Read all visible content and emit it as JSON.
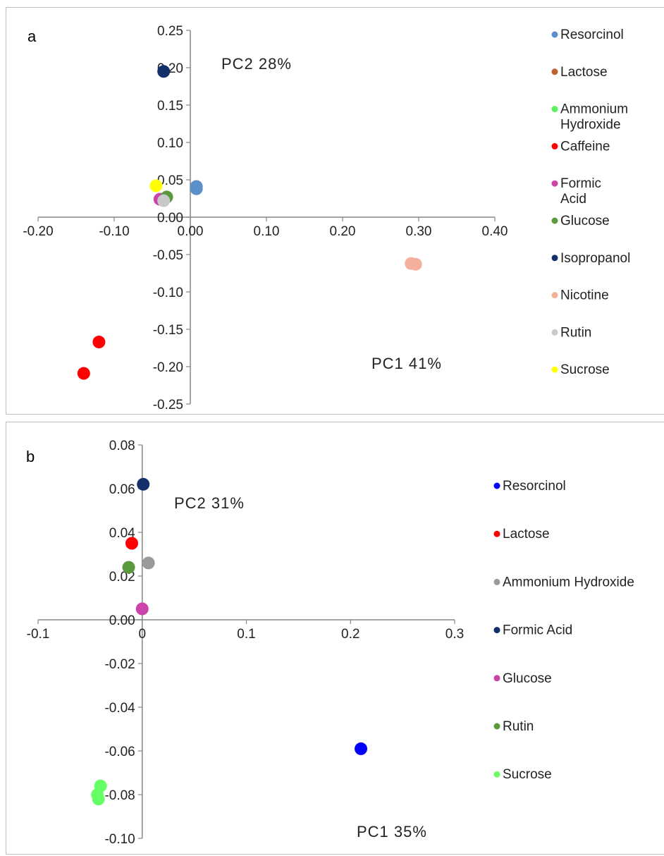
{
  "chart_data": [
    {
      "type": "scatter",
      "panel_label": "a",
      "xlim": [
        -0.2,
        0.4
      ],
      "ylim": [
        -0.25,
        0.25
      ],
      "x_ticks": [
        "-0.20",
        "-0.10",
        "0.00",
        "0.10",
        "0.20",
        "0.30",
        "0.40"
      ],
      "y_ticks": [
        "0.25",
        "0.20",
        "0.15",
        "0.10",
        "0.05",
        "0.00",
        "-0.05",
        "-0.10",
        "-0.15",
        "-0.20",
        "-0.25"
      ],
      "pc1_label": "PC1  41%",
      "pc2_label": "PC2  28%",
      "series": [
        {
          "name": "Resorcinol",
          "color": "#5b8fc9",
          "points": [
            [
              0.008,
              0.041
            ],
            [
              0.008,
              0.038
            ]
          ]
        },
        {
          "name": "Lactose",
          "color": "#c0622e",
          "points": []
        },
        {
          "name": "Ammonium Hydroxide",
          "color": "#5cf05c",
          "points": []
        },
        {
          "name": "Caffeine",
          "color": "#ff0000",
          "points": [
            [
              -0.12,
              -0.167
            ],
            [
              -0.14,
              -0.209
            ]
          ]
        },
        {
          "name": "Formic Acid",
          "color": "#cc44aa",
          "points": [
            [
              -0.04,
              0.024
            ]
          ]
        },
        {
          "name": "Glucose",
          "color": "#5a9a3c",
          "points": [
            [
              -0.031,
              0.027
            ]
          ]
        },
        {
          "name": "Isopropanol",
          "color": "#13306b",
          "points": [
            [
              -0.035,
              0.195
            ]
          ]
        },
        {
          "name": "Nicotine",
          "color": "#f4b09a",
          "points": [
            [
              0.29,
              -0.062
            ],
            [
              0.296,
              -0.063
            ]
          ]
        },
        {
          "name": "Rutin",
          "color": "#c9c9c9",
          "points": [
            [
              -0.035,
              0.022
            ]
          ]
        },
        {
          "name": "Sucrose",
          "color": "#ffff00",
          "points": [
            [
              -0.045,
              0.042
            ]
          ]
        }
      ]
    },
    {
      "type": "scatter",
      "panel_label": "b",
      "xlim": [
        -0.1,
        0.3
      ],
      "ylim": [
        -0.1,
        0.08
      ],
      "x_ticks": [
        "-0.1",
        "0",
        "0.1",
        "0.2",
        "0.3"
      ],
      "y_ticks": [
        "0.08",
        "0.06",
        "0.04",
        "0.02",
        "0.00",
        "-0.02",
        "-0.04",
        "-0.06",
        "-0.08",
        "-0.10"
      ],
      "pc1_label": "PC1  35%",
      "pc2_label": "PC2  31%",
      "series": [
        {
          "name": "Resorcinol",
          "color": "#0000ff",
          "points": [
            [
              0.21,
              -0.059
            ]
          ]
        },
        {
          "name": "Lactose",
          "color": "#ff0000",
          "points": [
            [
              -0.01,
              0.035
            ]
          ]
        },
        {
          "name": "Ammonium Hydroxide",
          "color": "#9a9a9a",
          "points": [
            [
              0.006,
              0.026
            ]
          ]
        },
        {
          "name": "Formic Acid",
          "color": "#13306b",
          "points": [
            [
              0.001,
              0.062
            ]
          ]
        },
        {
          "name": "Glucose",
          "color": "#cc44aa",
          "points": [
            [
              0.0,
              0.005
            ]
          ]
        },
        {
          "name": "Rutin",
          "color": "#5a9a3c",
          "points": [
            [
              -0.013,
              0.024
            ]
          ]
        },
        {
          "name": "Sucrose",
          "color": "#66ff66",
          "points": [
            [
              -0.04,
              -0.076
            ],
            [
              -0.043,
              -0.08
            ],
            [
              -0.042,
              -0.082
            ]
          ]
        }
      ]
    }
  ]
}
